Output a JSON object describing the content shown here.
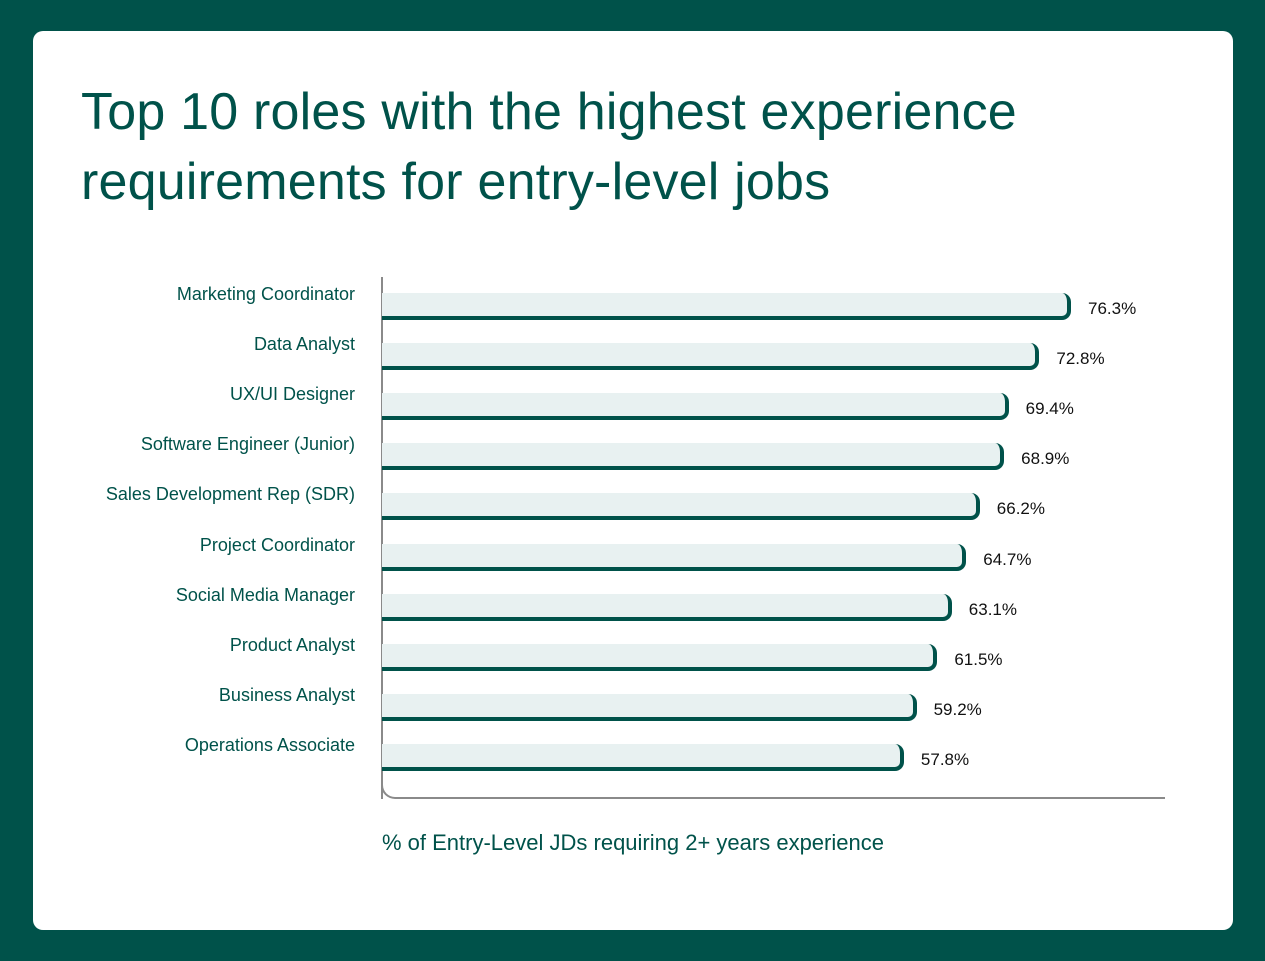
{
  "title": "Top 10 roles with the highest experience requirements for entry-level jobs",
  "x_axis_label": "% of Entry-Level JDs requiring 2+ years experience",
  "colors": {
    "frame": "#00524A",
    "bar_fill": "#E8F1F1",
    "bar_edge": "#00524A",
    "text_primary": "#00524A"
  },
  "rows": [
    {
      "label": "Marketing Coordinator",
      "value": 76.3,
      "display": "76.3%"
    },
    {
      "label": "Data Analyst",
      "value": 72.8,
      "display": "72.8%"
    },
    {
      "label": "UX/UI Designer",
      "value": 69.4,
      "display": "69.4%"
    },
    {
      "label": "Software Engineer (Junior)",
      "value": 68.9,
      "display": "68.9%"
    },
    {
      "label": "Sales Development Rep (SDR)",
      "value": 66.2,
      "display": "66.2%"
    },
    {
      "label": "Project Coordinator",
      "value": 64.7,
      "display": "64.7%"
    },
    {
      "label": "Social Media Manager",
      "value": 63.1,
      "display": "63.1%"
    },
    {
      "label": "Product Analyst",
      "value": 61.5,
      "display": "61.5%"
    },
    {
      "label": "Business Analyst",
      "value": 59.2,
      "display": "59.2%"
    },
    {
      "label": "Operations Associate",
      "value": 57.8,
      "display": "57.8%"
    }
  ],
  "chart_data": {
    "type": "bar",
    "orientation": "horizontal",
    "title": "Top 10 roles with the highest experience requirements for entry-level jobs",
    "xlabel": "% of Entry-Level JDs requiring 2+ years experience",
    "ylabel": "",
    "categories": [
      "Marketing Coordinator",
      "Data Analyst",
      "UX/UI Designer",
      "Software Engineer (Junior)",
      "Sales Development Rep (SDR)",
      "Project Coordinator",
      "Social Media Manager",
      "Product Analyst",
      "Business Analyst",
      "Operations Associate"
    ],
    "values": [
      76.3,
      72.8,
      69.4,
      68.9,
      66.2,
      64.7,
      63.1,
      61.5,
      59.2,
      57.8
    ],
    "value_labels": [
      "76.3%",
      "72.8%",
      "69.4%",
      "68.9%",
      "66.2%",
      "64.7%",
      "63.1%",
      "61.5%",
      "59.2%",
      "57.8%"
    ],
    "xlim": [
      0,
      86
    ],
    "grid": false,
    "legend": null
  }
}
